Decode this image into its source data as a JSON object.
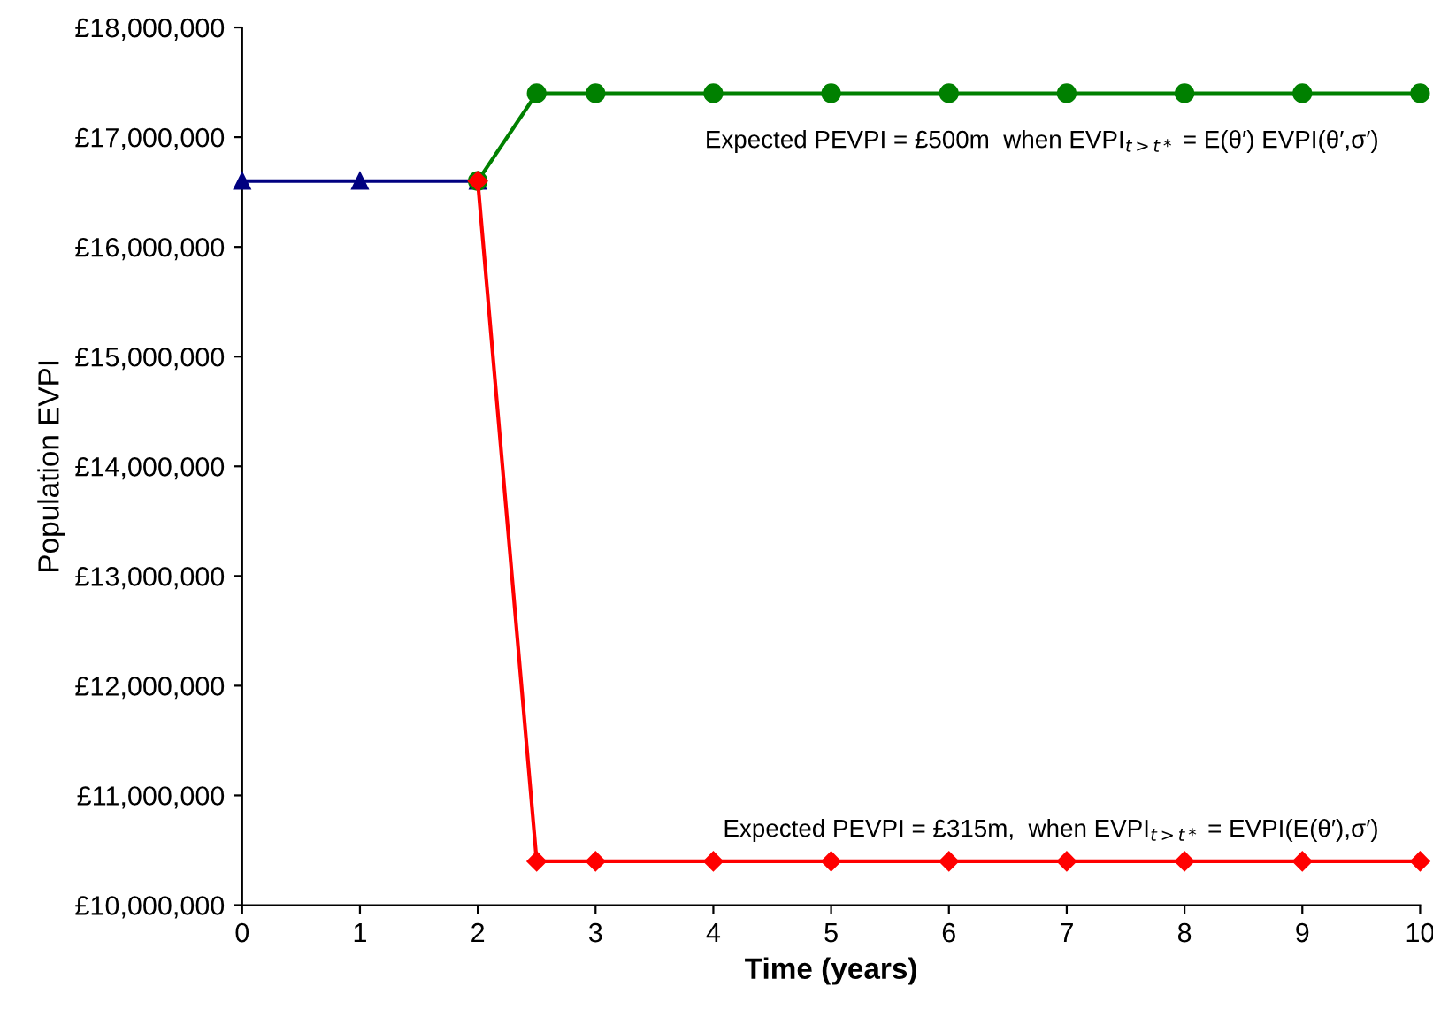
{
  "chart_data": {
    "type": "line",
    "xlabel": "Time (years)",
    "ylabel": "Population EVPI",
    "series": [
      {
        "color": "#000080",
        "marker": "triangle",
        "x": [
          0,
          1,
          2
        ],
        "values": [
          16600000,
          16600000,
          16600000
        ]
      },
      {
        "color": "#008000",
        "marker": "circle",
        "x": [
          2,
          2.5,
          3,
          4,
          5,
          6,
          7,
          8,
          9,
          10
        ],
        "values": [
          16600000,
          17400000,
          17400000,
          17400000,
          17400000,
          17400000,
          17400000,
          17400000,
          17400000,
          17400000
        ]
      },
      {
        "color": "#ff0000",
        "marker": "diamond",
        "x": [
          2,
          2.5,
          3,
          4,
          5,
          6,
          7,
          8,
          9,
          10
        ],
        "values": [
          16600000,
          10400000,
          10400000,
          10400000,
          10400000,
          10400000,
          10400000,
          10400000,
          10400000,
          10400000
        ]
      }
    ],
    "xlim": [
      0,
      10
    ],
    "xticks": [
      0,
      1,
      2,
      3,
      4,
      5,
      6,
      7,
      8,
      9,
      10
    ],
    "ylim": [
      10000000,
      18000000
    ],
    "yticks": [
      {
        "value": 10000000,
        "label": "£10,000,000"
      },
      {
        "value": 11000000,
        "label": "£11,000,000"
      },
      {
        "value": 12000000,
        "label": "£12,000,000"
      },
      {
        "value": 13000000,
        "label": "£13,000,000"
      },
      {
        "value": 14000000,
        "label": "£14,000,000"
      },
      {
        "value": 15000000,
        "label": "£15,000,000"
      },
      {
        "value": 16000000,
        "label": "£16,000,000"
      },
      {
        "value": 17000000,
        "label": "£17,000,000"
      },
      {
        "value": 18000000,
        "label": "£18,000,000"
      }
    ],
    "annotations": [
      "Expected PEVPI = £500m  when EVPI$_{t>t*}$ = E(θ′) EVPI(θ′,σ′)",
      "Expected PEVPI = £315m,  when EVPI$_{t>t*}$ = EVPI(E(θ′),σ′)"
    ],
    "grid": false,
    "legend": false
  }
}
